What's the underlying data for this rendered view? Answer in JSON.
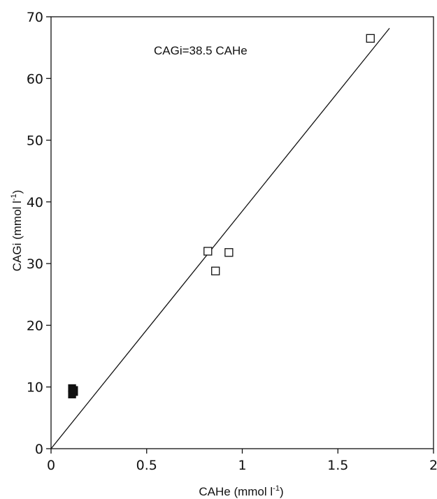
{
  "chart_data": {
    "type": "scatter",
    "title": "",
    "xlabel": {
      "main": "CAHe (mmol l",
      "sup": "-1",
      "close": ")"
    },
    "ylabel": {
      "main": "CAGi (mmol l",
      "sup": "-1",
      "close": ")"
    },
    "xlim": [
      0,
      2
    ],
    "ylim": [
      0,
      70
    ],
    "x_ticks": [
      0,
      0.5,
      1,
      1.5,
      2
    ],
    "x_tick_labels": [
      "0",
      "0.5",
      "1",
      "1.5",
      "2"
    ],
    "y_ticks": [
      0,
      10,
      20,
      30,
      40,
      50,
      60,
      70
    ],
    "y_tick_labels": [
      "0",
      "10",
      "20",
      "30",
      "40",
      "50",
      "60",
      "70"
    ],
    "grid": false,
    "legend": "none",
    "annotation": "CAGi=38.5 CAHe",
    "series": [
      {
        "marker": "open-square",
        "points": [
          {
            "x": 0.82,
            "y": 32.0
          },
          {
            "x": 0.86,
            "y": 28.8
          },
          {
            "x": 0.93,
            "y": 31.8
          },
          {
            "x": 1.67,
            "y": 66.5
          }
        ]
      },
      {
        "marker": "filled-square",
        "points": [
          {
            "x": 0.11,
            "y": 9.8
          },
          {
            "x": 0.12,
            "y": 9.2
          },
          {
            "x": 0.11,
            "y": 8.8
          },
          {
            "x": 0.12,
            "y": 9.5
          }
        ]
      }
    ],
    "fit_line": {
      "slope": 38.5,
      "intercept": 0,
      "x_range": [
        0,
        1.77
      ]
    }
  },
  "colors": {
    "ink": "#111111",
    "background": "#ffffff"
  }
}
